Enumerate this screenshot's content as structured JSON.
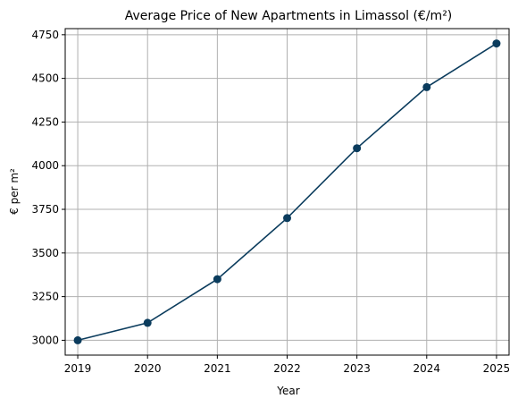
{
  "chart_data": {
    "type": "line",
    "title": "Average Price of New Apartments in Limassol (€/m²)",
    "xlabel": "Year",
    "ylabel": "€ per m²",
    "x": [
      "2019",
      "2020",
      "2021",
      "2022",
      "2023",
      "2024",
      "2025"
    ],
    "series": [
      {
        "values": [
          3000,
          3100,
          3350,
          3700,
          4100,
          4450,
          4700
        ]
      }
    ],
    "x_range": [
      2018.82,
      2025.18
    ],
    "ylim": [
      2915,
      4785
    ],
    "yticks": [
      3000,
      3250,
      3500,
      3750,
      4000,
      4250,
      4500,
      4750
    ],
    "grid": true,
    "markers": true,
    "line_color": "#0b3c5d"
  }
}
